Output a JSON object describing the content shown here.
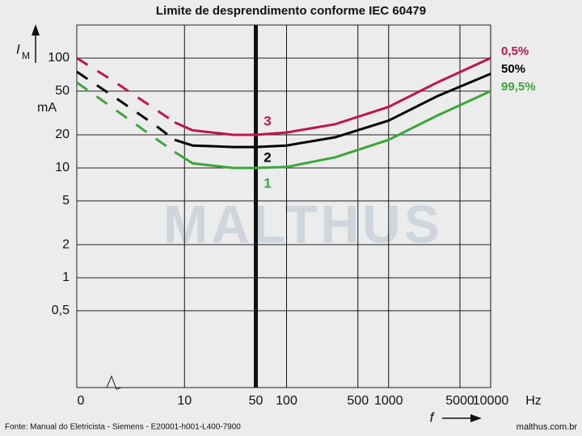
{
  "chart_data": {
    "type": "line",
    "title": "Limite de desprendimento conforme IEC 60479",
    "y_label": "I",
    "y_label_sub": "M",
    "y_unit": "mA",
    "x_label": "f",
    "x_unit": "Hz",
    "x_origin_label": "0",
    "x": [
      0.88,
      2,
      5,
      8,
      12,
      30,
      50,
      100,
      300,
      1000,
      3000,
      10000
    ],
    "series": [
      {
        "name": "0,5%",
        "curve_label": "3",
        "color": "#c0144f",
        "values": [
          100,
          62,
          35,
          26,
          22,
          20,
          20,
          21,
          25,
          36,
          60,
          100
        ]
      },
      {
        "name": "50%",
        "curve_label": "2",
        "color": "#000000",
        "values": [
          75,
          45,
          25,
          18,
          16,
          15.5,
          15.5,
          16,
          19,
          27,
          45,
          72
        ]
      },
      {
        "name": "99,5%",
        "curve_label": "1",
        "color": "#3aa63a",
        "values": [
          60,
          35,
          19,
          14,
          11,
          10,
          10,
          10.2,
          12.5,
          18,
          30,
          50
        ]
      }
    ],
    "dashed_below": 8,
    "highlight_x": 50,
    "xlim": [
      0.88,
      10000
    ],
    "ylim": [
      0.1,
      200
    ],
    "xticks": [
      10,
      50,
      100,
      500,
      1000,
      5000,
      10000
    ],
    "yticks": [
      {
        "value": 0.5,
        "label": "0,5"
      },
      1,
      2,
      5,
      10,
      20,
      50,
      100
    ],
    "log_x": true,
    "log_y": true,
    "grid": true,
    "watermark": "MALTHUS",
    "source": "Fonte: Manual do Eletricista - Siemens - E20001-h001-L400-7900",
    "site": "malthus.com.br"
  }
}
